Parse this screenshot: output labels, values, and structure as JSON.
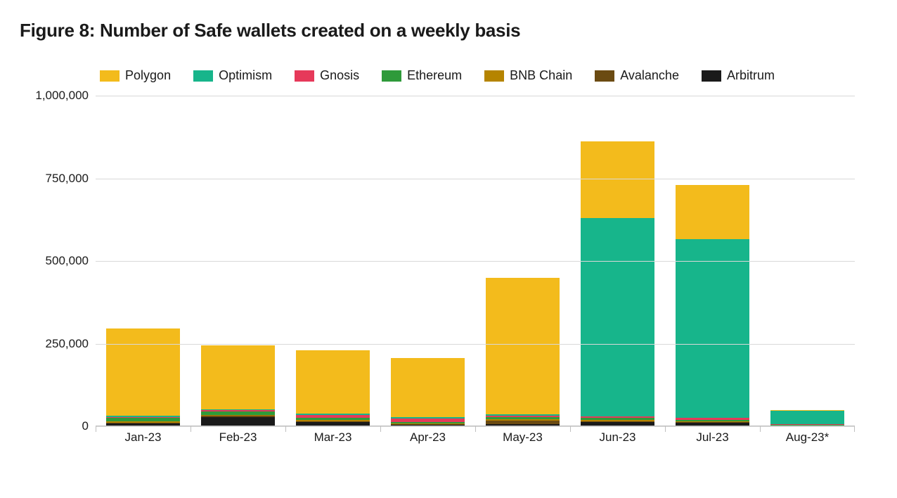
{
  "title": "Figure 8: Number of Safe wallets created on a weekly basis",
  "chart": {
    "type": "stacked-bar",
    "background_color": "#ffffff",
    "grid_color": "#d9d9d9",
    "axis_color": "#bfbfbf",
    "text_color": "#1a1a1a",
    "title_fontsize": 26,
    "title_fontweight": 700,
    "label_fontsize": 17,
    "legend_fontsize": 18,
    "bar_width_ratio": 0.78,
    "ylim": [
      0,
      1000000
    ],
    "ytick_step": 250000,
    "yticks": [
      {
        "v": 0,
        "label": "0"
      },
      {
        "v": 250000,
        "label": "250,000"
      },
      {
        "v": 500000,
        "label": "500,000"
      },
      {
        "v": 750000,
        "label": "750,000"
      },
      {
        "v": 1000000,
        "label": "1,000,000"
      }
    ],
    "categories": [
      "Jan-23",
      "Feb-23",
      "Mar-23",
      "Apr-23",
      "May-23",
      "Jun-23",
      "Jul-23",
      "Aug-23*"
    ],
    "series_order": [
      "Arbitrum",
      "Avalanche",
      "BNB Chain",
      "Ethereum",
      "Gnosis",
      "Optimism",
      "Polygon"
    ],
    "legend_order": [
      "Polygon",
      "Optimism",
      "Gnosis",
      "Ethereum",
      "BNB Chain",
      "Avalanche",
      "Arbitrum"
    ],
    "colors": {
      "Polygon": "#f3bb1c",
      "Optimism": "#17b58b",
      "Gnosis": "#e6395a",
      "Ethereum": "#2e9a3a",
      "BNB Chain": "#b58400",
      "Avalanche": "#6b4b12",
      "Arbitrum": "#1a1a1a"
    },
    "data": {
      "Polygon": [
        262000,
        192000,
        192000,
        180000,
        412000,
        232000,
        165000,
        4000
      ],
      "Optimism": [
        6000,
        4000,
        3000,
        3000,
        6000,
        600000,
        540000,
        40000
      ],
      "Gnosis": [
        2000,
        4000,
        10000,
        12000,
        4000,
        4000,
        6000,
        1000
      ],
      "Ethereum": [
        10000,
        10000,
        6000,
        4000,
        6000,
        6000,
        4000,
        2000
      ],
      "BNB Chain": [
        4000,
        3000,
        3000,
        2000,
        3000,
        3000,
        2000,
        1000
      ],
      "Avalanche": [
        3000,
        3000,
        4000,
        2000,
        12000,
        4000,
        3000,
        1000
      ],
      "Arbitrum": [
        8000,
        28000,
        12000,
        4000,
        6000,
        12000,
        10000,
        1000
      ]
    }
  }
}
